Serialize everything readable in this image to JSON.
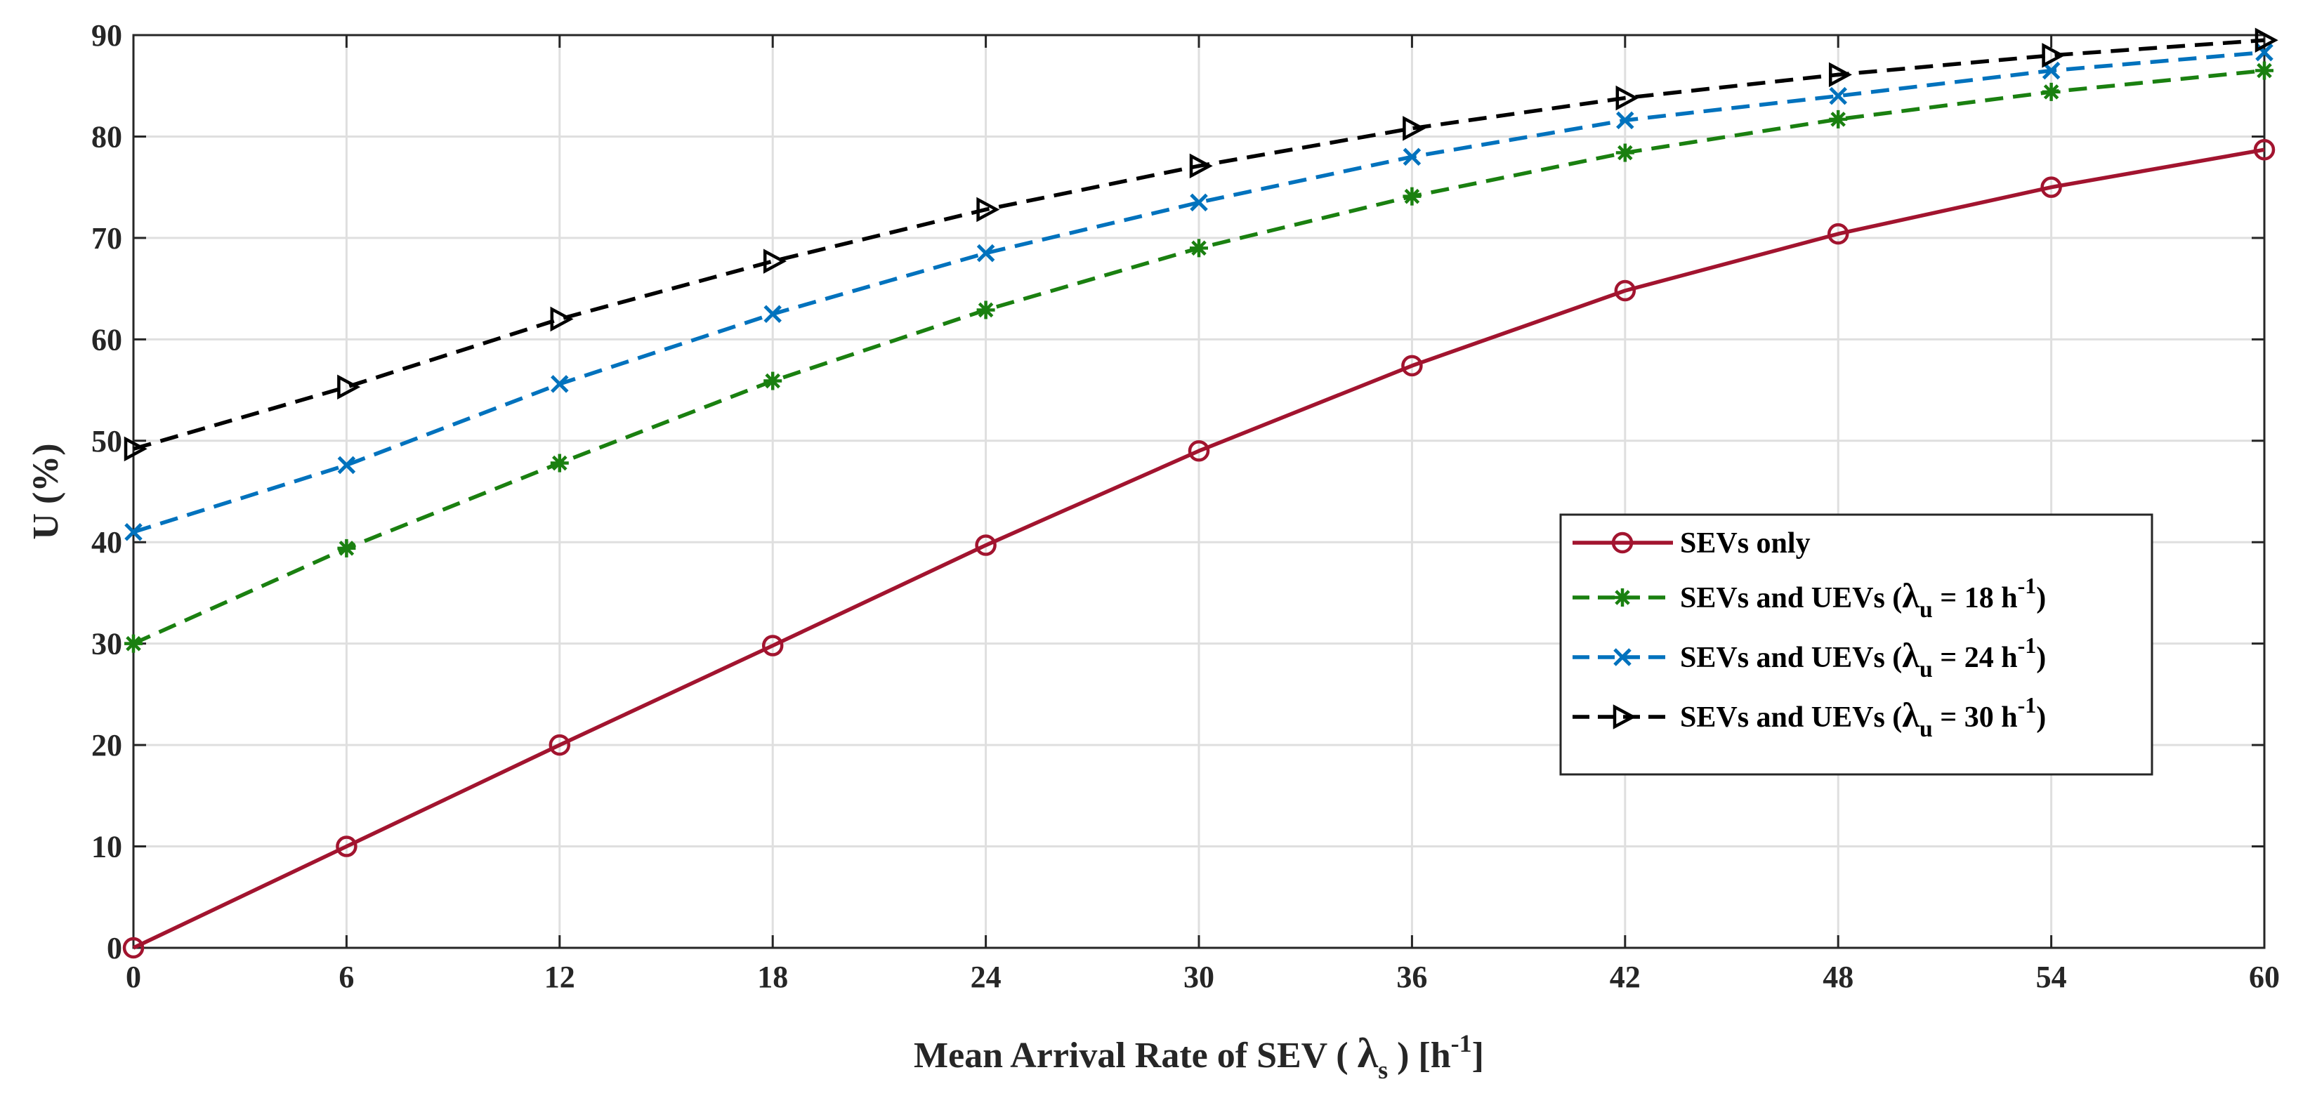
{
  "chart_data": {
    "type": "line",
    "title": "",
    "xlabel": {
      "prefix": "Mean Arrival Rate of SEV ( ",
      "symbol": "λ",
      "subscript": "s",
      "suffix": " ) [h",
      "sup": "-1",
      "close": "]"
    },
    "ylabel": "U (%)",
    "xlim": [
      0,
      60
    ],
    "ylim": [
      0,
      90
    ],
    "x_ticks": [
      0,
      6,
      12,
      18,
      24,
      30,
      36,
      42,
      48,
      54,
      60
    ],
    "y_ticks": [
      0,
      10,
      20,
      30,
      40,
      50,
      60,
      70,
      80,
      90
    ],
    "grid": true,
    "legend_position": "center-right",
    "x": [
      0,
      6,
      12,
      18,
      24,
      30,
      36,
      42,
      48,
      54,
      60
    ],
    "series": [
      {
        "name": "SEVs only",
        "label": {
          "text": "SEVs only"
        },
        "color": "#a2142f",
        "line_style": "solid",
        "marker": "circle",
        "values": [
          0,
          10,
          20,
          29.8,
          39.7,
          49,
          57.4,
          64.8,
          70.4,
          75,
          78.7
        ]
      },
      {
        "name": "SEVs and UEVs (λu = 18 h-1)",
        "label": {
          "text": "SEVs and UEVs  (",
          "symbol": "λ",
          "subscript": "u",
          "rate": " = 18 h",
          "sup": "-1",
          "close": ")"
        },
        "color": "#1a8010",
        "line_style": "dashed",
        "marker": "asterisk",
        "values": [
          30,
          39.4,
          47.8,
          55.9,
          62.9,
          69,
          74.1,
          78.4,
          81.7,
          84.4,
          86.5
        ]
      },
      {
        "name": "SEVs and UEVs (λu = 24 h-1)",
        "label": {
          "text": "SEVs and UEVs  (",
          "symbol": "λ",
          "subscript": "u",
          "rate": " = 24 h",
          "sup": "-1",
          "close": ")"
        },
        "color": "#0072bd",
        "line_style": "dashed",
        "marker": "x",
        "values": [
          41,
          47.6,
          55.6,
          62.5,
          68.5,
          73.5,
          78,
          81.6,
          84,
          86.5,
          88.3
        ]
      },
      {
        "name": "SEVs and UEVs (λu = 30 h-1)",
        "label": {
          "text": "SEVs and UEVs  (",
          "symbol": "λ",
          "subscript": "u",
          "rate": " = 30 h",
          "sup": "-1",
          "close": ")"
        },
        "color": "#000000",
        "line_style": "dashed",
        "marker": "triangle-right",
        "values": [
          49.2,
          55.3,
          62,
          67.7,
          72.8,
          77.1,
          80.8,
          83.8,
          86.1,
          88,
          89.5
        ]
      }
    ]
  }
}
